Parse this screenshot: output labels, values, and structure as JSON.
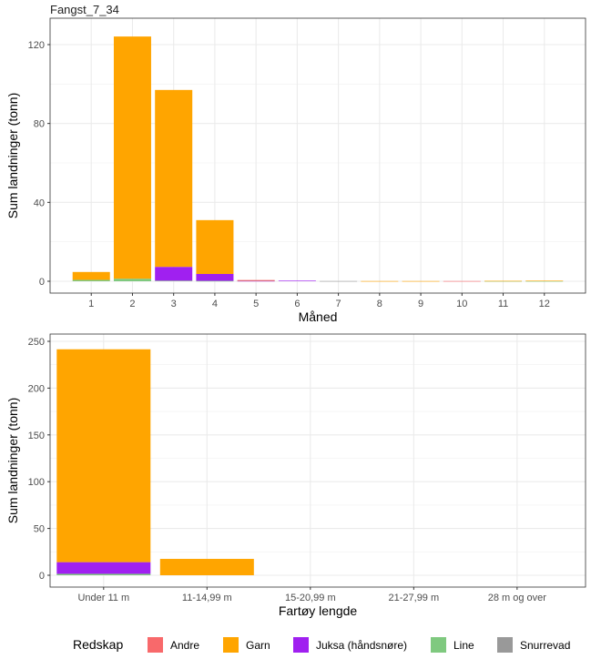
{
  "colors": {
    "Andre": "#F8696B",
    "Garn": "#FFA500",
    "Juksa (håndsnøre)": "#A020F0",
    "Line": "#7FC97F",
    "Snurrevad": "#999999"
  },
  "chart_data": [
    {
      "type": "bar",
      "stacked": true,
      "title": "Fangst_7_34",
      "xlabel": "Måned",
      "ylabel": "Sum landninger (tonn)",
      "categories": [
        "1",
        "2",
        "3",
        "4",
        "5",
        "6",
        "7",
        "8",
        "9",
        "10",
        "11",
        "12"
      ],
      "ylim": [
        0,
        130
      ],
      "yticks": [
        0,
        40,
        80,
        120
      ],
      "grid": true,
      "series": [
        {
          "name": "Andre",
          "values": [
            0,
            0,
            0,
            0,
            0.1,
            0,
            0,
            0,
            0,
            0.1,
            0,
            0
          ]
        },
        {
          "name": "Garn",
          "values": [
            4.0,
            122.8,
            89.7,
            27.3,
            0.3,
            0,
            0,
            0.1,
            0.1,
            0,
            0.1,
            0.2
          ]
        },
        {
          "name": "Juksa (håndsnøre)",
          "values": [
            0,
            0,
            7.0,
            3.5,
            0.2,
            0.3,
            0,
            0,
            0,
            0,
            0,
            0
          ]
        },
        {
          "name": "Line",
          "values": [
            0.7,
            1.3,
            0.3,
            0.2,
            0,
            0,
            0,
            0,
            0,
            0,
            0.1,
            0.1
          ]
        },
        {
          "name": "Snurrevad",
          "values": [
            0,
            0,
            0,
            0,
            0,
            0,
            0.1,
            0,
            0,
            0,
            0,
            0
          ]
        }
      ]
    },
    {
      "type": "bar",
      "stacked": true,
      "xlabel": "Fartøy lengde",
      "ylabel": "Sum landninger (tonn)",
      "categories": [
        "Under 11 m",
        "11-14,99 m",
        "15-20,99 m",
        "21-27,99 m",
        "28 m og over"
      ],
      "ylim": [
        0,
        255
      ],
      "yticks": [
        0,
        50,
        100,
        150,
        200,
        250
      ],
      "grid": true,
      "series": [
        {
          "name": "Andre",
          "values": [
            0,
            0,
            0,
            0,
            0
          ]
        },
        {
          "name": "Garn",
          "values": [
            227.5,
            17.5,
            0,
            0,
            0
          ]
        },
        {
          "name": "Juksa (håndsnøre)",
          "values": [
            12.5,
            0,
            0,
            0,
            0
          ]
        },
        {
          "name": "Line",
          "values": [
            1.5,
            0,
            0,
            0,
            0
          ]
        },
        {
          "name": "Snurrevad",
          "values": [
            0,
            0,
            0,
            0,
            0
          ]
        }
      ]
    }
  ],
  "legend": {
    "title": "Redskap",
    "position": "bottom",
    "items": [
      "Andre",
      "Garn",
      "Juksa (håndsnøre)",
      "Line",
      "Snurrevad"
    ]
  }
}
